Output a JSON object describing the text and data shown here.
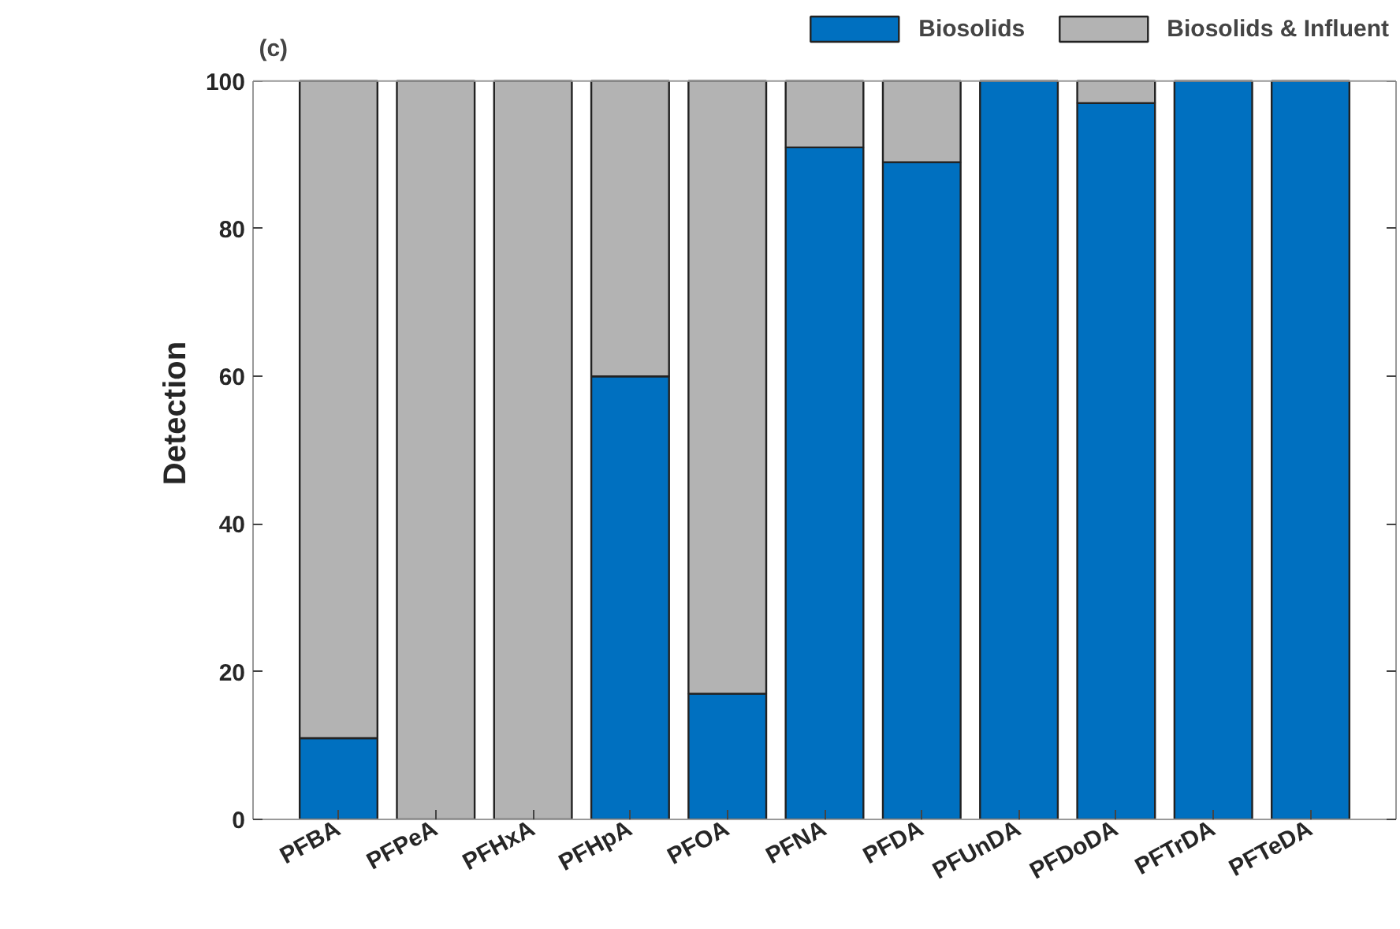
{
  "chart_data": {
    "type": "bar",
    "stacked": true,
    "ylabel": "Detection",
    "annotations": [
      "(c)"
    ],
    "categories": [
      "PFBA",
      "PFPeA",
      "PFHxA",
      "PFHpA",
      "PFOA",
      "PFNA",
      "PFDA",
      "PFUnDA",
      "PFDoDA",
      "PFTrDA",
      "PFTeDA"
    ],
    "series": [
      {
        "name": "Biosolids",
        "color": "#0070c0",
        "values": [
          11,
          0,
          0,
          60,
          17,
          91,
          89,
          100,
          97,
          100,
          100
        ]
      },
      {
        "name": "Biosolids & Influent",
        "color": "#b3b3b3",
        "values": [
          89,
          100,
          100,
          40,
          83,
          9,
          11,
          0,
          3,
          0,
          0
        ]
      }
    ],
    "ylim": [
      0,
      100
    ],
    "yticks": [
      0,
      20,
      40,
      60,
      80,
      100
    ],
    "grid": false,
    "legend": "top right"
  }
}
